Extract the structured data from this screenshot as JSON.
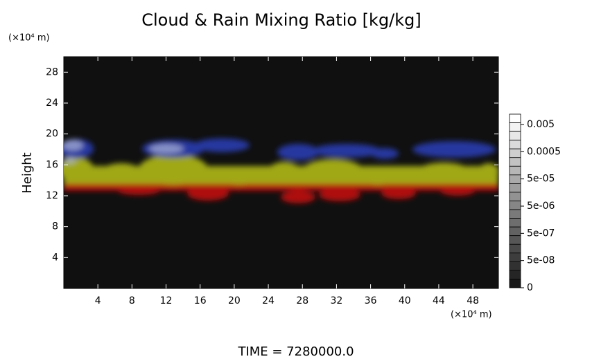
{
  "chart_data": {
    "type": "field",
    "title": "Cloud & Rain Mixing Ratio [kg/kg]",
    "ylabel": "Height",
    "yunit": "(×10⁴ m)",
    "xunit": "(×10⁴ m)",
    "footer": "TIME = 7280000.0",
    "xlim": [
      0,
      51
    ],
    "xticks": [
      4,
      8,
      12,
      16,
      20,
      24,
      28,
      32,
      36,
      40,
      44,
      48
    ],
    "ylim": [
      0,
      30
    ],
    "yticks": [
      4,
      8,
      12,
      16,
      20,
      24,
      28
    ],
    "colorbar_ticks": [
      0.005,
      0.0005,
      {
        "value": 5e-05,
        "label": "5e-05"
      },
      {
        "value": 5e-06,
        "label": "5e-06"
      },
      {
        "value": 5e-07,
        "label": "5e-07"
      },
      {
        "value": 5e-08,
        "label": "5e-08"
      },
      0
    ]
  }
}
